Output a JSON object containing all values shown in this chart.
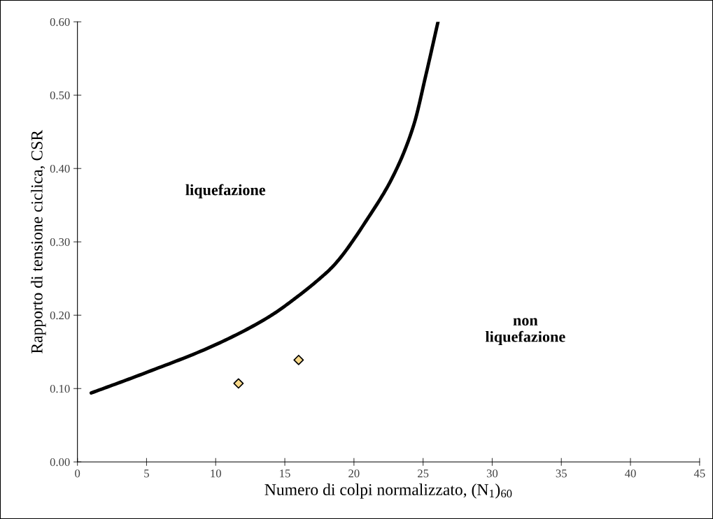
{
  "chart_data": {
    "type": "scatter",
    "xlabel": "Numero di colpi normalizzato, (N$_{1}$)$_{60}$",
    "ylabel": "Rapporto di tensione ciclica, CSR",
    "xlim": [
      0,
      45
    ],
    "xticks": [
      0,
      5,
      10,
      15,
      20,
      25,
      30,
      35,
      40,
      45
    ],
    "ylim": [
      0,
      0.6
    ],
    "yticks": [
      {
        "value": 0,
        "label": "0.00"
      },
      {
        "value": 0.1,
        "label": "0.10"
      },
      {
        "value": 0.2,
        "label": "0.20"
      },
      {
        "value": 0.3,
        "label": "0.30"
      },
      {
        "value": 0.4,
        "label": "0.40"
      },
      {
        "value": 0.5,
        "label": "0.50"
      },
      {
        "value": 0.6,
        "label": "0.60"
      }
    ],
    "grid": false,
    "legend": false,
    "series": [
      {
        "type": "line",
        "color": "#000000",
        "line_style": "solid",
        "marker": "none",
        "x": [
          1.0,
          4.86,
          9.9,
          13.87,
          16.03,
          17.47,
          18.55,
          21.07,
          22.87,
          24.32,
          25.21,
          26.08
        ],
        "values": [
          0.094,
          0.121,
          0.159,
          0.198,
          0.227,
          0.249,
          0.268,
          0.334,
          0.391,
          0.459,
          0.528,
          0.6
        ]
      },
      {
        "color": "#f9d98a",
        "marker": "diamond",
        "x": [
          11.65,
          16.0
        ],
        "values": [
          0.107,
          0.139
        ]
      }
    ],
    "annotations": [
      "liquefazione",
      "non\nliquefazione"
    ]
  }
}
